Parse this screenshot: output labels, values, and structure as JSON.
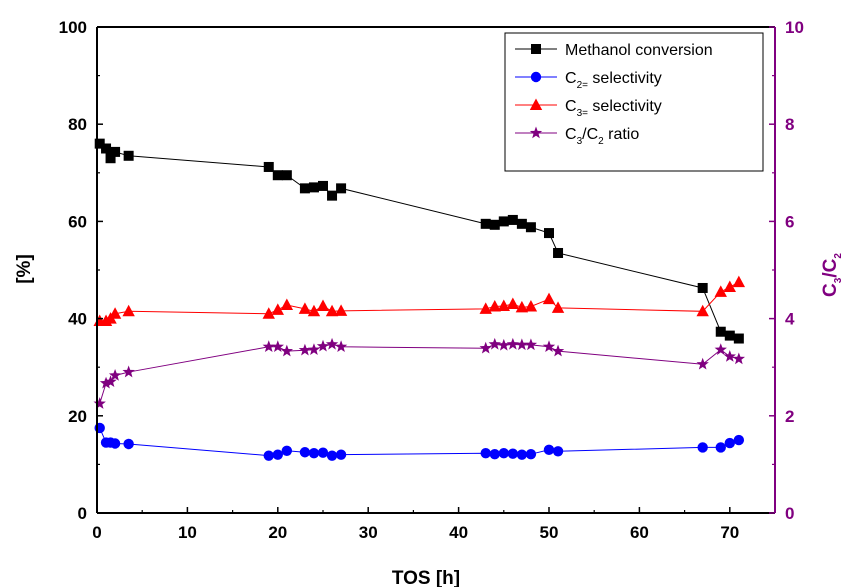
{
  "chart_data": {
    "type": "line",
    "xlabel": "TOS [h]",
    "ylabel": "[%]",
    "y2label": {
      "base": "C",
      "sub1": "3",
      "mid": "/C",
      "sub2": "2"
    },
    "xlim": [
      0,
      75
    ],
    "ylim": [
      0,
      100
    ],
    "y2lim": [
      0,
      10
    ],
    "xticks": [
      0,
      10,
      20,
      30,
      40,
      50,
      60,
      70
    ],
    "yticks": [
      0,
      20,
      40,
      60,
      80,
      100
    ],
    "y2ticks": [
      0,
      2,
      4,
      6,
      8,
      10
    ],
    "legend_position": "top-right",
    "series": [
      {
        "name": "Methanol conversion",
        "legend": {
          "base": "Methanol conversion",
          "sub": "",
          "tail": ""
        },
        "axis": "left",
        "marker": "square",
        "color": "#000000",
        "x": [
          0.3,
          1.0,
          1.5,
          2.0,
          3.5,
          19.0,
          20.0,
          21.0,
          23.0,
          24.0,
          25.0,
          26.0,
          27.0,
          43.0,
          44.0,
          45.0,
          46.0,
          47.0,
          48.0,
          50.0,
          51.0,
          67.0,
          69.0,
          70.0,
          71.0
        ],
        "y": [
          76.0,
          75.0,
          73.0,
          74.3,
          73.5,
          71.2,
          69.5,
          69.5,
          66.8,
          67.0,
          67.3,
          65.3,
          66.8,
          59.5,
          59.3,
          60.0,
          60.3,
          59.5,
          58.8,
          57.6,
          53.5,
          46.3,
          37.3,
          36.5,
          35.9
        ]
      },
      {
        "name": "C2= selectivity",
        "legend": {
          "base": "C",
          "sub": "2=",
          "tail": " selectivity"
        },
        "axis": "left",
        "marker": "circle",
        "color": "#0000ff",
        "x": [
          0.3,
          1.0,
          1.5,
          2.0,
          3.5,
          19.0,
          20.0,
          21.0,
          23.0,
          24.0,
          25.0,
          26.0,
          27.0,
          43.0,
          44.0,
          45.0,
          46.0,
          47.0,
          48.0,
          50.0,
          51.0,
          67.0,
          69.0,
          70.0,
          71.0
        ],
        "y": [
          17.5,
          14.5,
          14.5,
          14.3,
          14.2,
          11.8,
          12.0,
          12.8,
          12.5,
          12.3,
          12.4,
          11.8,
          12.0,
          12.3,
          12.1,
          12.3,
          12.2,
          12.0,
          12.1,
          13.0,
          12.7,
          13.5,
          13.5,
          14.4,
          15.0
        ]
      },
      {
        "name": "C3= selectivity",
        "legend": {
          "base": "C",
          "sub": "3=",
          "tail": " selectivity"
        },
        "axis": "left",
        "marker": "triangle",
        "color": "#ff0000",
        "x": [
          0.3,
          1.0,
          1.5,
          2.0,
          3.5,
          19.0,
          20.0,
          21.0,
          23.0,
          24.0,
          25.0,
          26.0,
          27.0,
          43.0,
          44.0,
          45.0,
          46.0,
          47.0,
          48.0,
          50.0,
          51.0,
          67.0,
          69.0,
          70.0,
          71.0
        ],
        "y": [
          39.5,
          39.5,
          40.0,
          41.0,
          41.5,
          41.0,
          41.8,
          42.8,
          42.0,
          41.5,
          42.6,
          41.5,
          41.6,
          42.0,
          42.5,
          42.6,
          43.0,
          42.3,
          42.5,
          44.0,
          42.2,
          41.5,
          45.5,
          46.5,
          47.5
        ]
      },
      {
        "name": "C3/C2 ratio",
        "legend": {
          "base": "C",
          "sub": "3",
          "tail": "/C",
          "sub2": "2",
          "tail2": " ratio"
        },
        "axis": "right",
        "marker": "star",
        "color": "#800080",
        "x": [
          0.3,
          1.0,
          1.5,
          2.0,
          3.5,
          19.0,
          20.0,
          21.0,
          23.0,
          24.0,
          25.0,
          26.0,
          27.0,
          43.0,
          44.0,
          45.0,
          46.0,
          47.0,
          48.0,
          50.0,
          51.0,
          67.0,
          69.0,
          70.0,
          71.0
        ],
        "y": [
          2.25,
          2.67,
          2.7,
          2.83,
          2.9,
          3.42,
          3.42,
          3.33,
          3.35,
          3.36,
          3.43,
          3.47,
          3.42,
          3.39,
          3.47,
          3.45,
          3.47,
          3.46,
          3.46,
          3.42,
          3.33,
          3.06,
          3.36,
          3.22,
          3.17
        ]
      }
    ]
  }
}
